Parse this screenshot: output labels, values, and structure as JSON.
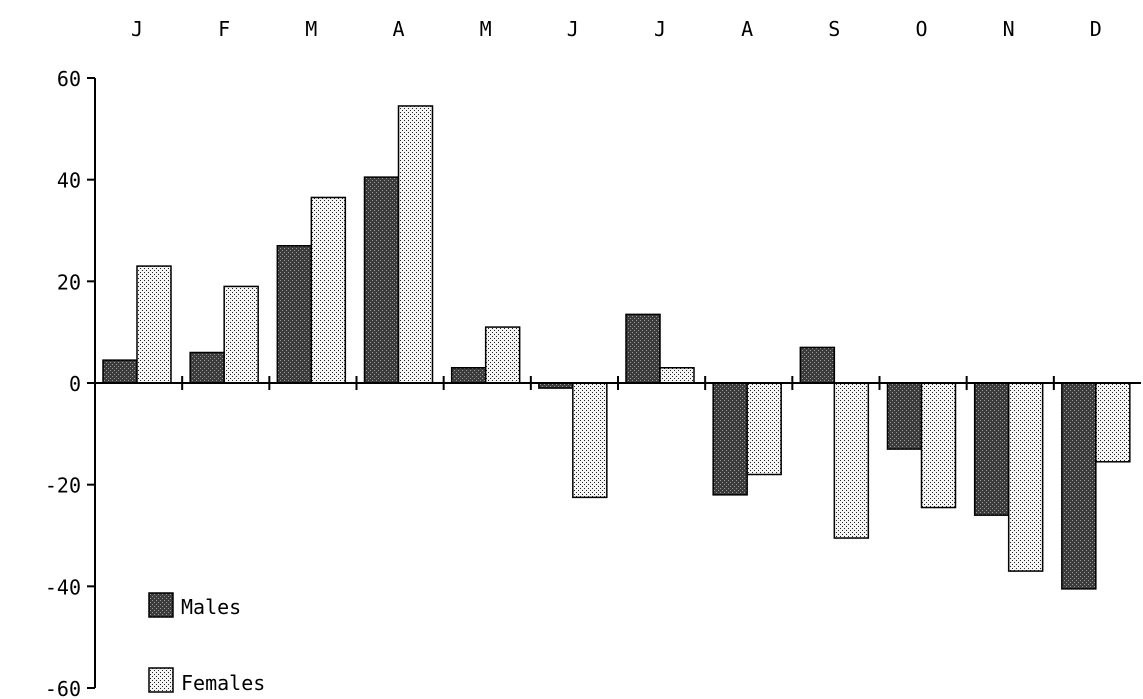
{
  "chart_data": {
    "type": "bar",
    "title": "",
    "xlabel": "",
    "ylabel": "",
    "categories": [
      "J",
      "F",
      "M",
      "A",
      "M",
      "J",
      "J",
      "A",
      "S",
      "O",
      "N",
      "D"
    ],
    "ylim": [
      -60,
      60
    ],
    "yticks": [
      60,
      40,
      20,
      0,
      -20,
      -40,
      -60
    ],
    "grid": false,
    "legend_position": "bottom-left",
    "series": [
      {
        "name": "Males",
        "pattern": "dark-stipple",
        "values": [
          4.5,
          6,
          27,
          40.5,
          3,
          -1,
          13.5,
          -22,
          7,
          -13,
          -26,
          -40.5
        ]
      },
      {
        "name": "Females",
        "pattern": "light-stipple",
        "values": [
          23,
          19,
          36.5,
          54.5,
          11,
          -22.5,
          3,
          -18,
          -30.5,
          -24.5,
          -37,
          -15.5
        ]
      }
    ]
  },
  "legend": {
    "males_label": "Males",
    "females_label": "Females"
  },
  "colors": {
    "axis": "#000000",
    "males_fill": "#4a4a4a",
    "females_fill": "#ffffff"
  }
}
